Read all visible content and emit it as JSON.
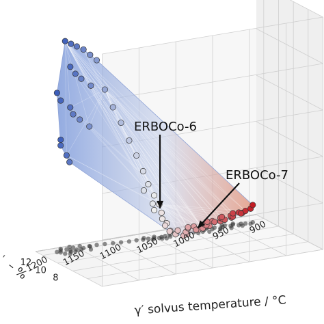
{
  "chart_data": {
    "type": "scatter",
    "projection": "3d",
    "title": "",
    "xlabel": "γ′ solvus temperature / °C",
    "ylabel": "– %",
    "ylabel_prefix": "′",
    "zlabel": "",
    "x_ticks": [
      "1200",
      "1150",
      "1100",
      "1050",
      "1000",
      "950",
      "900"
    ],
    "y_ticks": [
      "8",
      "10",
      "12"
    ],
    "xlim": [
      1200,
      900
    ],
    "ylim": [
      6,
      12
    ],
    "grid": true,
    "colormap": [
      "#3558b8",
      "#eeeeee",
      "#c0141c"
    ],
    "hull_color": "#6f8fd6",
    "shadow_color": "#333333",
    "series": [
      {
        "points": [
          {
            "x": 1190,
            "y": 9.0,
            "z": 0.95
          },
          {
            "x": 1180,
            "y": 9.2,
            "z": 0.93
          },
          {
            "x": 1170,
            "y": 9.4,
            "z": 0.91
          },
          {
            "x": 1160,
            "y": 9.5,
            "z": 0.89
          },
          {
            "x": 1150,
            "y": 9.6,
            "z": 0.86
          },
          {
            "x": 1140,
            "y": 9.7,
            "z": 0.83
          },
          {
            "x": 1185,
            "y": 8.8,
            "z": 0.84
          },
          {
            "x": 1175,
            "y": 9.1,
            "z": 0.8
          },
          {
            "x": 1165,
            "y": 9.3,
            "z": 0.77
          },
          {
            "x": 1155,
            "y": 9.0,
            "z": 0.74
          },
          {
            "x": 1195,
            "y": 9.6,
            "z": 0.72
          },
          {
            "x": 1188,
            "y": 9.8,
            "z": 0.68
          },
          {
            "x": 1178,
            "y": 9.5,
            "z": 0.65
          },
          {
            "x": 1170,
            "y": 9.9,
            "z": 0.61
          },
          {
            "x": 1160,
            "y": 10.0,
            "z": 0.58
          },
          {
            "x": 1150,
            "y": 9.7,
            "z": 0.55
          },
          {
            "x": 1192,
            "y": 9.4,
            "z": 0.52
          },
          {
            "x": 1185,
            "y": 10.1,
            "z": 0.48
          },
          {
            "x": 1180,
            "y": 9.8,
            "z": 0.44
          },
          {
            "x": 1172,
            "y": 10.2,
            "z": 0.4
          },
          {
            "x": 1130,
            "y": 9.6,
            "z": 0.7
          },
          {
            "x": 1120,
            "y": 9.5,
            "z": 0.62
          },
          {
            "x": 1110,
            "y": 9.4,
            "z": 0.55
          },
          {
            "x": 1100,
            "y": 9.3,
            "z": 0.47
          },
          {
            "x": 1090,
            "y": 9.3,
            "z": 0.4
          },
          {
            "x": 1082,
            "y": 9.2,
            "z": 0.33
          },
          {
            "x": 1075,
            "y": 9.2,
            "z": 0.27
          },
          {
            "x": 1068,
            "y": 9.1,
            "z": 0.22
          },
          {
            "x": 1062,
            "y": 9.0,
            "z": 0.18
          },
          {
            "x": 1058,
            "y": 9.1,
            "z": 0.14
          },
          {
            "x": 1060,
            "y": 8.8,
            "z": 0.12
          },
          {
            "x": 1055,
            "y": 8.7,
            "z": 0.1
          },
          {
            "x": 1052,
            "y": 9.2,
            "z": 0.08
          },
          {
            "x": 1048,
            "y": 8.9,
            "z": 0.06
          },
          {
            "x": 1045,
            "y": 9.3,
            "z": 0.05
          },
          {
            "x": 1065,
            "y": 9.4,
            "z": 0.15
          },
          {
            "x": 1072,
            "y": 8.9,
            "z": 0.19
          },
          {
            "x": 1078,
            "y": 9.5,
            "z": 0.24
          },
          {
            "x": 1040,
            "y": 9.0,
            "z": 0.04
          },
          {
            "x": 1035,
            "y": 9.2,
            "z": 0.05
          },
          {
            "x": 1030,
            "y": 8.9,
            "z": 0.03
          },
          {
            "x": 1025,
            "y": 9.1,
            "z": 0.04
          },
          {
            "x": 1020,
            "y": 9.3,
            "z": 0.05
          },
          {
            "x": 1015,
            "y": 9.0,
            "z": 0.06
          },
          {
            "x": 1010,
            "y": 9.2,
            "z": 0.04
          },
          {
            "x": 1005,
            "y": 8.8,
            "z": 0.05
          },
          {
            "x": 1000,
            "y": 9.1,
            "z": 0.06
          },
          {
            "x": 995,
            "y": 9.3,
            "z": 0.05
          },
          {
            "x": 990,
            "y": 9.0,
            "z": 0.07
          },
          {
            "x": 985,
            "y": 9.2,
            "z": 0.06
          },
          {
            "x": 980,
            "y": 8.9,
            "z": 0.08
          },
          {
            "x": 975,
            "y": 9.1,
            "z": 0.07
          },
          {
            "x": 970,
            "y": 9.3,
            "z": 0.06
          },
          {
            "x": 965,
            "y": 9.0,
            "z": 0.08
          },
          {
            "x": 960,
            "y": 9.2,
            "z": 0.07
          },
          {
            "x": 955,
            "y": 8.9,
            "z": 0.09
          },
          {
            "x": 950,
            "y": 9.1,
            "z": 0.08
          },
          {
            "x": 945,
            "y": 9.0,
            "z": 0.09
          },
          {
            "x": 940,
            "y": 8.8,
            "z": 0.1
          },
          {
            "x": 935,
            "y": 9.0,
            "z": 0.11
          },
          {
            "x": 1028,
            "y": 8.6,
            "z": 0.04
          },
          {
            "x": 1012,
            "y": 8.7,
            "z": 0.05
          },
          {
            "x": 998,
            "y": 8.6,
            "z": 0.06
          },
          {
            "x": 982,
            "y": 8.7,
            "z": 0.07
          },
          {
            "x": 968,
            "y": 8.6,
            "z": 0.08
          },
          {
            "x": 952,
            "y": 8.7,
            "z": 0.09
          },
          {
            "x": 1018,
            "y": 9.5,
            "z": 0.05
          },
          {
            "x": 992,
            "y": 9.5,
            "z": 0.06
          },
          {
            "x": 972,
            "y": 9.5,
            "z": 0.07
          },
          {
            "x": 958,
            "y": 9.4,
            "z": 0.08
          }
        ]
      }
    ],
    "annotations": [
      {
        "text": "ERBOCo-6",
        "x": 1060,
        "y": 9.1,
        "z": 0.16
      },
      {
        "text": "ERBOCo-7",
        "x": 1010,
        "y": 9.0,
        "z": 0.05
      }
    ]
  }
}
